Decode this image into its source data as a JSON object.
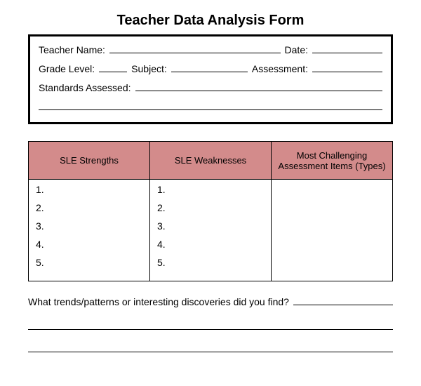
{
  "title": "Teacher Data Analysis Form",
  "info": {
    "teacher_name_label": "Teacher Name:",
    "date_label": "Date:",
    "grade_level_label": "Grade Level:",
    "subject_label": "Subject:",
    "assessment_label": "Assessment:",
    "standards_label": "Standards Assessed:"
  },
  "table": {
    "header_bg": "#d38b8b",
    "columns": {
      "c1": "SLE Strengths",
      "c2": "SLE Weaknesses",
      "c3": "Most Challenging Assessment Items (Types)"
    },
    "nums": {
      "n1": "1.",
      "n2": "2.",
      "n3": "3.",
      "n4": "4.",
      "n5": "5."
    }
  },
  "trends": {
    "question": "What trends/patterns or interesting discoveries did you find?"
  }
}
